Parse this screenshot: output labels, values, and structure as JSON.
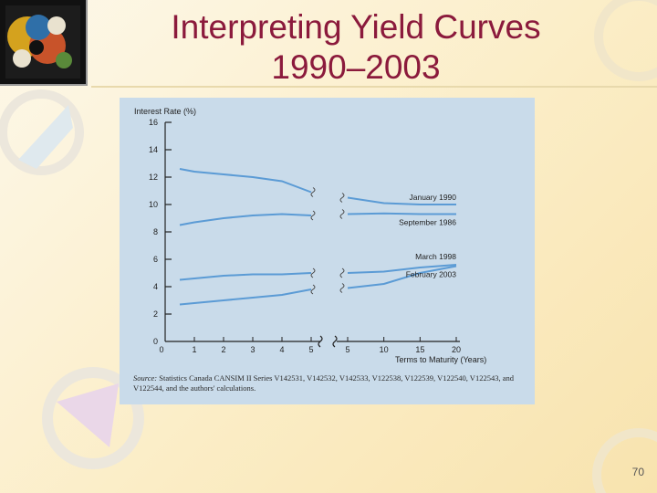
{
  "slide": {
    "title_line1": "Interpreting Yield Curves",
    "title_line2": "1990–2003",
    "page_number": "70",
    "source_label": "Source:",
    "source_text": "Statistics Canada CANSIM II Series V142531, V142532, V142533, V122538, V122539, V122540, V122543, and V122544, and the authors' calculations."
  },
  "colors": {
    "title": "#8b1a3c",
    "line": "#5b9bd5",
    "panel": "#c9dbea",
    "axis": "#222222"
  },
  "chart_data": {
    "type": "line",
    "ylabel": "Interest Rate (%)",
    "xlabel": "Terms to Maturity (Years)",
    "ylim": [
      0,
      16
    ],
    "yticks": [
      "0",
      "2",
      "4",
      "6",
      "8",
      "10",
      "12",
      "14",
      "16"
    ],
    "x_left_ticks": [
      "1",
      "2",
      "3",
      "4",
      "5"
    ],
    "x_right_ticks": [
      "5",
      "10",
      "15",
      "20"
    ],
    "axis_break": true,
    "grid": false,
    "series": [
      {
        "name": "January 1990",
        "left": [
          [
            0.5,
            12.6
          ],
          [
            1,
            12.4
          ],
          [
            2,
            12.2
          ],
          [
            3,
            12.0
          ],
          [
            4,
            11.7
          ],
          [
            5,
            10.9
          ]
        ],
        "right": [
          [
            5,
            10.5
          ],
          [
            10,
            10.1
          ],
          [
            15,
            10.0
          ],
          [
            20,
            10.0
          ]
        ]
      },
      {
        "name": "September 1986",
        "left": [
          [
            0.5,
            8.5
          ],
          [
            1,
            8.7
          ],
          [
            2,
            9.0
          ],
          [
            3,
            9.2
          ],
          [
            4,
            9.3
          ],
          [
            5,
            9.2
          ]
        ],
        "right": [
          [
            5,
            9.3
          ],
          [
            10,
            9.35
          ],
          [
            15,
            9.3
          ],
          [
            20,
            9.3
          ]
        ]
      },
      {
        "name": "March 1998",
        "left": [
          [
            0.5,
            4.5
          ],
          [
            1,
            4.6
          ],
          [
            2,
            4.8
          ],
          [
            3,
            4.9
          ],
          [
            4,
            4.9
          ],
          [
            5,
            5.0
          ]
        ],
        "right": [
          [
            5,
            5.0
          ],
          [
            10,
            5.1
          ],
          [
            15,
            5.4
          ],
          [
            20,
            5.6
          ]
        ]
      },
      {
        "name": "February 2003",
        "left": [
          [
            0.5,
            2.7
          ],
          [
            1,
            2.8
          ],
          [
            2,
            3.0
          ],
          [
            3,
            3.2
          ],
          [
            4,
            3.4
          ],
          [
            5,
            3.8
          ]
        ],
        "right": [
          [
            5,
            3.9
          ],
          [
            10,
            4.2
          ],
          [
            15,
            5.0
          ],
          [
            20,
            5.5
          ]
        ]
      }
    ]
  }
}
